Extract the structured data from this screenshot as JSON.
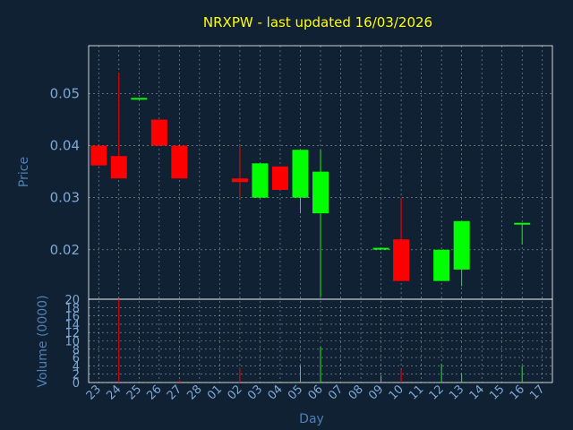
{
  "chart_data": {
    "type": "candlestick",
    "title": "NRXPW - last updated 16/03/2026",
    "xlabel": "Day",
    "ylabel": "Price",
    "ylabel_volume": "Volume (0000)",
    "grid": true,
    "colors": {
      "background": "#0f2133",
      "title": "#ffff00",
      "up": "#00ff00",
      "down": "#ff0000",
      "axis_text": "#7fa8d6",
      "axis_label": "#4f80b3"
    },
    "price_ylim": [
      0.0105,
      0.0592
    ],
    "price_yticks": [
      "0.02",
      "0.03",
      "0.04",
      "0.05"
    ],
    "price_ytick_values": [
      0.02,
      0.03,
      0.04,
      0.05
    ],
    "volume_ylim": [
      0,
      20
    ],
    "volume_yticks": [
      "0",
      "2",
      "4",
      "6",
      "8",
      "10",
      "12",
      "14",
      "16",
      "18",
      "20"
    ],
    "x_tick_labels": [
      "23",
      "24",
      "25",
      "26",
      "27",
      "28",
      "01",
      "02",
      "03",
      "04",
      "05",
      "06",
      "07",
      "08",
      "09",
      "10",
      "11",
      "12",
      "13",
      "16",
      "17"
    ],
    "x_tick_days": [
      0,
      1,
      2,
      3,
      4,
      5,
      6,
      7,
      8,
      9,
      10,
      11,
      12,
      13,
      14,
      15,
      16,
      17,
      18,
      21,
      22
    ],
    "x_range": [
      -0.5,
      22.5
    ],
    "extra_x_tick_labels": [
      "14",
      "15"
    ],
    "extra_x_tick_days": [
      19,
      20
    ],
    "candles": [
      {
        "day": 0,
        "open": 0.04,
        "close": 0.0362,
        "high": 0.04,
        "low": 0.0362,
        "volume": 0
      },
      {
        "day": 1,
        "open": 0.038,
        "close": 0.0337,
        "high": 0.054,
        "low": 0.0337,
        "volume": 20
      },
      {
        "day": 2,
        "open": 0.049,
        "close": 0.049,
        "high": 0.049,
        "low": 0.049,
        "volume": 0
      },
      {
        "day": 3,
        "open": 0.045,
        "close": 0.04,
        "high": 0.045,
        "low": 0.04,
        "volume": 0
      },
      {
        "day": 4,
        "open": 0.04,
        "close": 0.0337,
        "high": 0.04,
        "low": 0.0337,
        "volume": 0.5
      },
      {
        "day": 7,
        "open": 0.0337,
        "close": 0.033,
        "high": 0.04,
        "low": 0.03,
        "volume": 3.5
      },
      {
        "day": 8,
        "open": 0.03,
        "close": 0.0366,
        "high": 0.0366,
        "low": 0.03,
        "volume": 0
      },
      {
        "day": 9,
        "open": 0.036,
        "close": 0.0315,
        "high": 0.036,
        "low": 0.0315,
        "volume": 0
      },
      {
        "day": 10,
        "open": 0.03,
        "close": 0.0392,
        "high": 0.0392,
        "low": 0.027,
        "volume": 4
      },
      {
        "day": 11,
        "open": 0.027,
        "close": 0.035,
        "high": 0.0392,
        "low": 0.011,
        "volume": 8.5
      },
      {
        "day": 14,
        "open": 0.0202,
        "close": 0.0202,
        "high": 0.0202,
        "low": 0.0202,
        "volume": 1.7
      },
      {
        "day": 15,
        "open": 0.022,
        "close": 0.014,
        "high": 0.03,
        "low": 0.014,
        "volume": 3
      },
      {
        "day": 17,
        "open": 0.014,
        "close": 0.02,
        "high": 0.02,
        "low": 0.014,
        "volume": 4.5
      },
      {
        "day": 18,
        "open": 0.0162,
        "close": 0.0255,
        "high": 0.0255,
        "low": 0.013,
        "volume": 2
      },
      {
        "day": 21,
        "open": 0.025,
        "close": 0.025,
        "high": 0.025,
        "low": 0.021,
        "volume": 4
      }
    ]
  }
}
